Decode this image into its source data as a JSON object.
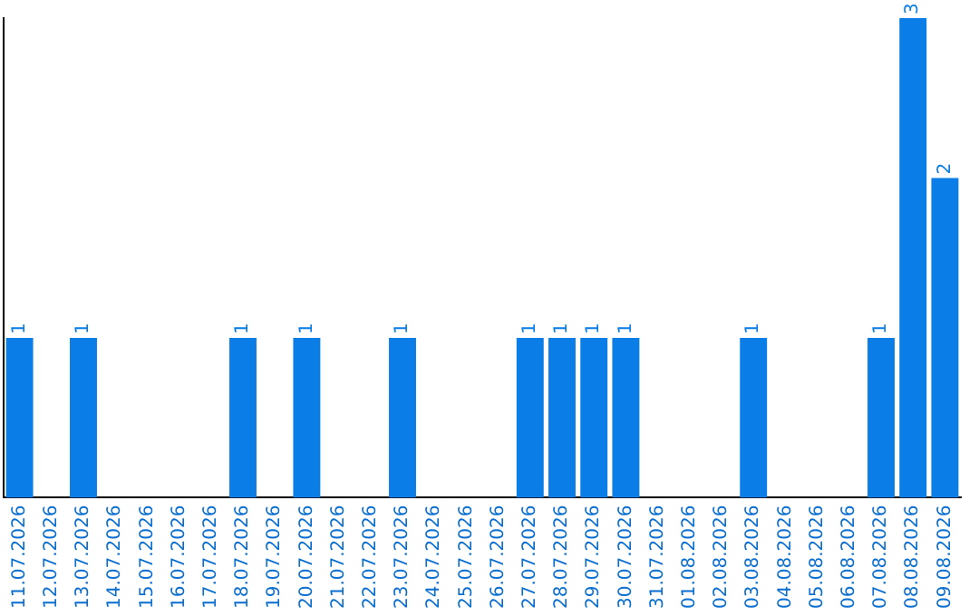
{
  "chart_data": {
    "type": "bar",
    "categories": [
      "11.07.2026",
      "12.07.2026",
      "13.07.2026",
      "14.07.2026",
      "15.07.2026",
      "16.07.2026",
      "17.07.2026",
      "18.07.2026",
      "19.07.2026",
      "20.07.2026",
      "21.07.2026",
      "22.07.2026",
      "23.07.2026",
      "24.07.2026",
      "25.07.2026",
      "26.07.2026",
      "27.07.2026",
      "28.07.2026",
      "29.07.2026",
      "30.07.2026",
      "31.07.2026",
      "01.08.2026",
      "02.08.2026",
      "03.08.2026",
      "04.08.2026",
      "05.08.2026",
      "06.08.2026",
      "07.08.2026",
      "08.08.2026",
      "09.08.2026"
    ],
    "values": [
      1,
      0,
      1,
      0,
      0,
      0,
      0,
      1,
      0,
      1,
      0,
      0,
      1,
      0,
      0,
      0,
      1,
      1,
      1,
      1,
      0,
      0,
      0,
      1,
      0,
      0,
      0,
      1,
      3,
      2
    ],
    "value_labels": [
      "1",
      null,
      "1",
      null,
      null,
      null,
      null,
      "1",
      null,
      "1",
      null,
      null,
      "1",
      null,
      null,
      null,
      "1",
      "1",
      "1",
      "1",
      null,
      null,
      null,
      "1",
      null,
      null,
      null,
      "1",
      "3",
      "2"
    ],
    "color": "#0a7ee6",
    "grid": false,
    "legend": false
  }
}
